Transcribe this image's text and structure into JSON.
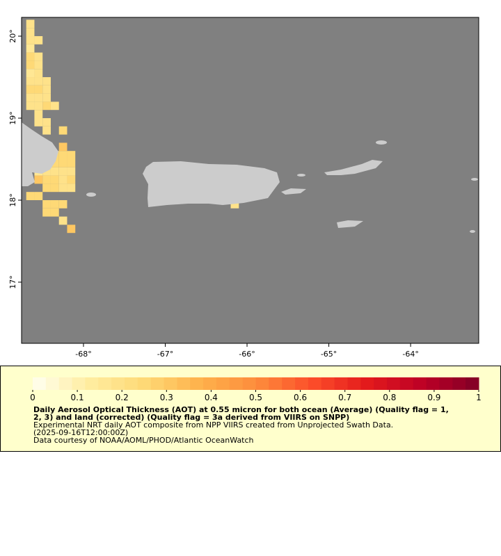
{
  "chart_data": {
    "type": "heatmap",
    "xlim": [
      -68.757,
      -63.167
    ],
    "ylim": [
      16.254,
      20.229
    ],
    "xticks": [
      {
        "value": -68,
        "label": "-68°"
      },
      {
        "value": -67,
        "label": "-67°"
      },
      {
        "value": -66,
        "label": "-66°"
      },
      {
        "value": -65,
        "label": "-65°"
      },
      {
        "value": -64,
        "label": "-64°"
      }
    ],
    "yticks": [
      {
        "value": 17,
        "label": "17°"
      },
      {
        "value": 18,
        "label": "18°"
      },
      {
        "value": 19,
        "label": "19°"
      },
      {
        "value": 20,
        "label": "20°"
      }
    ],
    "cells": [
      {
        "lon": -68.65,
        "lat": 20.15,
        "value": 0.2
      },
      {
        "lon": -68.65,
        "lat": 20.05,
        "value": 0.2
      },
      {
        "lon": -68.65,
        "lat": 19.95,
        "value": 0.2
      },
      {
        "lon": -68.55,
        "lat": 19.95,
        "value": 0.2
      },
      {
        "lon": -68.65,
        "lat": 19.85,
        "value": 0.15
      },
      {
        "lon": -68.65,
        "lat": 19.75,
        "value": 0.25
      },
      {
        "lon": -68.55,
        "lat": 19.75,
        "value": 0.2
      },
      {
        "lon": -68.65,
        "lat": 19.65,
        "value": 0.25
      },
      {
        "lon": -68.55,
        "lat": 19.65,
        "value": 0.2
      },
      {
        "lon": -68.65,
        "lat": 19.55,
        "value": 0.15
      },
      {
        "lon": -68.55,
        "lat": 19.55,
        "value": 0.2
      },
      {
        "lon": -68.65,
        "lat": 19.45,
        "value": 0.2
      },
      {
        "lon": -68.55,
        "lat": 19.45,
        "value": 0.2
      },
      {
        "lon": -68.45,
        "lat": 19.45,
        "value": 0.2
      },
      {
        "lon": -68.65,
        "lat": 19.35,
        "value": 0.25
      },
      {
        "lon": -68.55,
        "lat": 19.35,
        "value": 0.25
      },
      {
        "lon": -68.45,
        "lat": 19.35,
        "value": 0.2
      },
      {
        "lon": -68.65,
        "lat": 19.25,
        "value": 0.2
      },
      {
        "lon": -68.55,
        "lat": 19.25,
        "value": 0.2
      },
      {
        "lon": -68.45,
        "lat": 19.25,
        "value": 0.2
      },
      {
        "lon": -68.65,
        "lat": 19.15,
        "value": 0.2
      },
      {
        "lon": -68.55,
        "lat": 19.15,
        "value": 0.2
      },
      {
        "lon": -68.45,
        "lat": 19.15,
        "value": 0.25
      },
      {
        "lon": -68.35,
        "lat": 19.15,
        "value": 0.2
      },
      {
        "lon": -68.55,
        "lat": 19.05,
        "value": 0.2
      },
      {
        "lon": -68.55,
        "lat": 18.95,
        "value": 0.2
      },
      {
        "lon": -68.45,
        "lat": 18.95,
        "value": 0.2
      },
      {
        "lon": -68.45,
        "lat": 18.85,
        "value": 0.2
      },
      {
        "lon": -68.25,
        "lat": 18.85,
        "value": 0.25
      },
      {
        "lon": -68.25,
        "lat": 18.65,
        "value": 0.3
      },
      {
        "lon": -68.35,
        "lat": 18.55,
        "value": 0.25
      },
      {
        "lon": -68.25,
        "lat": 18.55,
        "value": 0.25
      },
      {
        "lon": -68.15,
        "lat": 18.55,
        "value": 0.25
      },
      {
        "lon": -68.35,
        "lat": 18.45,
        "value": 0.25
      },
      {
        "lon": -68.25,
        "lat": 18.45,
        "value": 0.25
      },
      {
        "lon": -68.15,
        "lat": 18.45,
        "value": 0.25
      },
      {
        "lon": -68.55,
        "lat": 18.35,
        "value": 0.15
      },
      {
        "lon": -68.45,
        "lat": 18.35,
        "value": 0.2
      },
      {
        "lon": -68.35,
        "lat": 18.35,
        "value": 0.2
      },
      {
        "lon": -68.25,
        "lat": 18.35,
        "value": 0.2
      },
      {
        "lon": -68.15,
        "lat": 18.35,
        "value": 0.2
      },
      {
        "lon": -68.55,
        "lat": 18.25,
        "value": 0.3
      },
      {
        "lon": -68.45,
        "lat": 18.25,
        "value": 0.25
      },
      {
        "lon": -68.35,
        "lat": 18.25,
        "value": 0.25
      },
      {
        "lon": -68.25,
        "lat": 18.25,
        "value": 0.2
      },
      {
        "lon": -68.15,
        "lat": 18.25,
        "value": 0.25
      },
      {
        "lon": -68.45,
        "lat": 18.15,
        "value": 0.25
      },
      {
        "lon": -68.35,
        "lat": 18.15,
        "value": 0.25
      },
      {
        "lon": -68.25,
        "lat": 18.15,
        "value": 0.2
      },
      {
        "lon": -68.15,
        "lat": 18.15,
        "value": 0.2
      },
      {
        "lon": -68.65,
        "lat": 18.05,
        "value": 0.25
      },
      {
        "lon": -68.55,
        "lat": 18.05,
        "value": 0.25
      },
      {
        "lon": -68.45,
        "lat": 17.95,
        "value": 0.25
      },
      {
        "lon": -68.35,
        "lat": 17.95,
        "value": 0.25
      },
      {
        "lon": -68.25,
        "lat": 17.95,
        "value": 0.25
      },
      {
        "lon": -68.45,
        "lat": 17.85,
        "value": 0.25
      },
      {
        "lon": -68.35,
        "lat": 17.85,
        "value": 0.25
      },
      {
        "lon": -68.25,
        "lat": 17.75,
        "value": 0.2
      },
      {
        "lon": -68.15,
        "lat": 17.65,
        "value": 0.3
      },
      {
        "lon": -66.15,
        "lat": 17.95,
        "value": 0.2
      }
    ],
    "colorbar": {
      "lim": [
        0,
        1
      ],
      "ticks": [
        0,
        0.1,
        0.2,
        0.3,
        0.4,
        0.5,
        0.6,
        0.7,
        0.8,
        0.9,
        1
      ],
      "colors": [
        "#fffff0",
        "#ffeda0",
        "#fed976",
        "#feb24c",
        "#fd8d3c",
        "#fc4e2a",
        "#e31a1c",
        "#bd0026",
        "#800026"
      ]
    },
    "title_lines": [
      "Daily Aerosol Optical Thickness (AOT) at 0.55 micron for both ocean (Average) (Quality flag = 1,",
      "2, 3) and land (corrected) (Quality flag = 3a derived from VIIRS on SNPP)"
    ],
    "notes": [
      "Experimental NRT daily AOT composite from NPP VIIRS created from Unprojected Swath Data.",
      "(2025-09-16T12:00:00Z)",
      "Data courtesy of NOAA/AOML/PHOD/Atlantic OceanWatch"
    ]
  }
}
